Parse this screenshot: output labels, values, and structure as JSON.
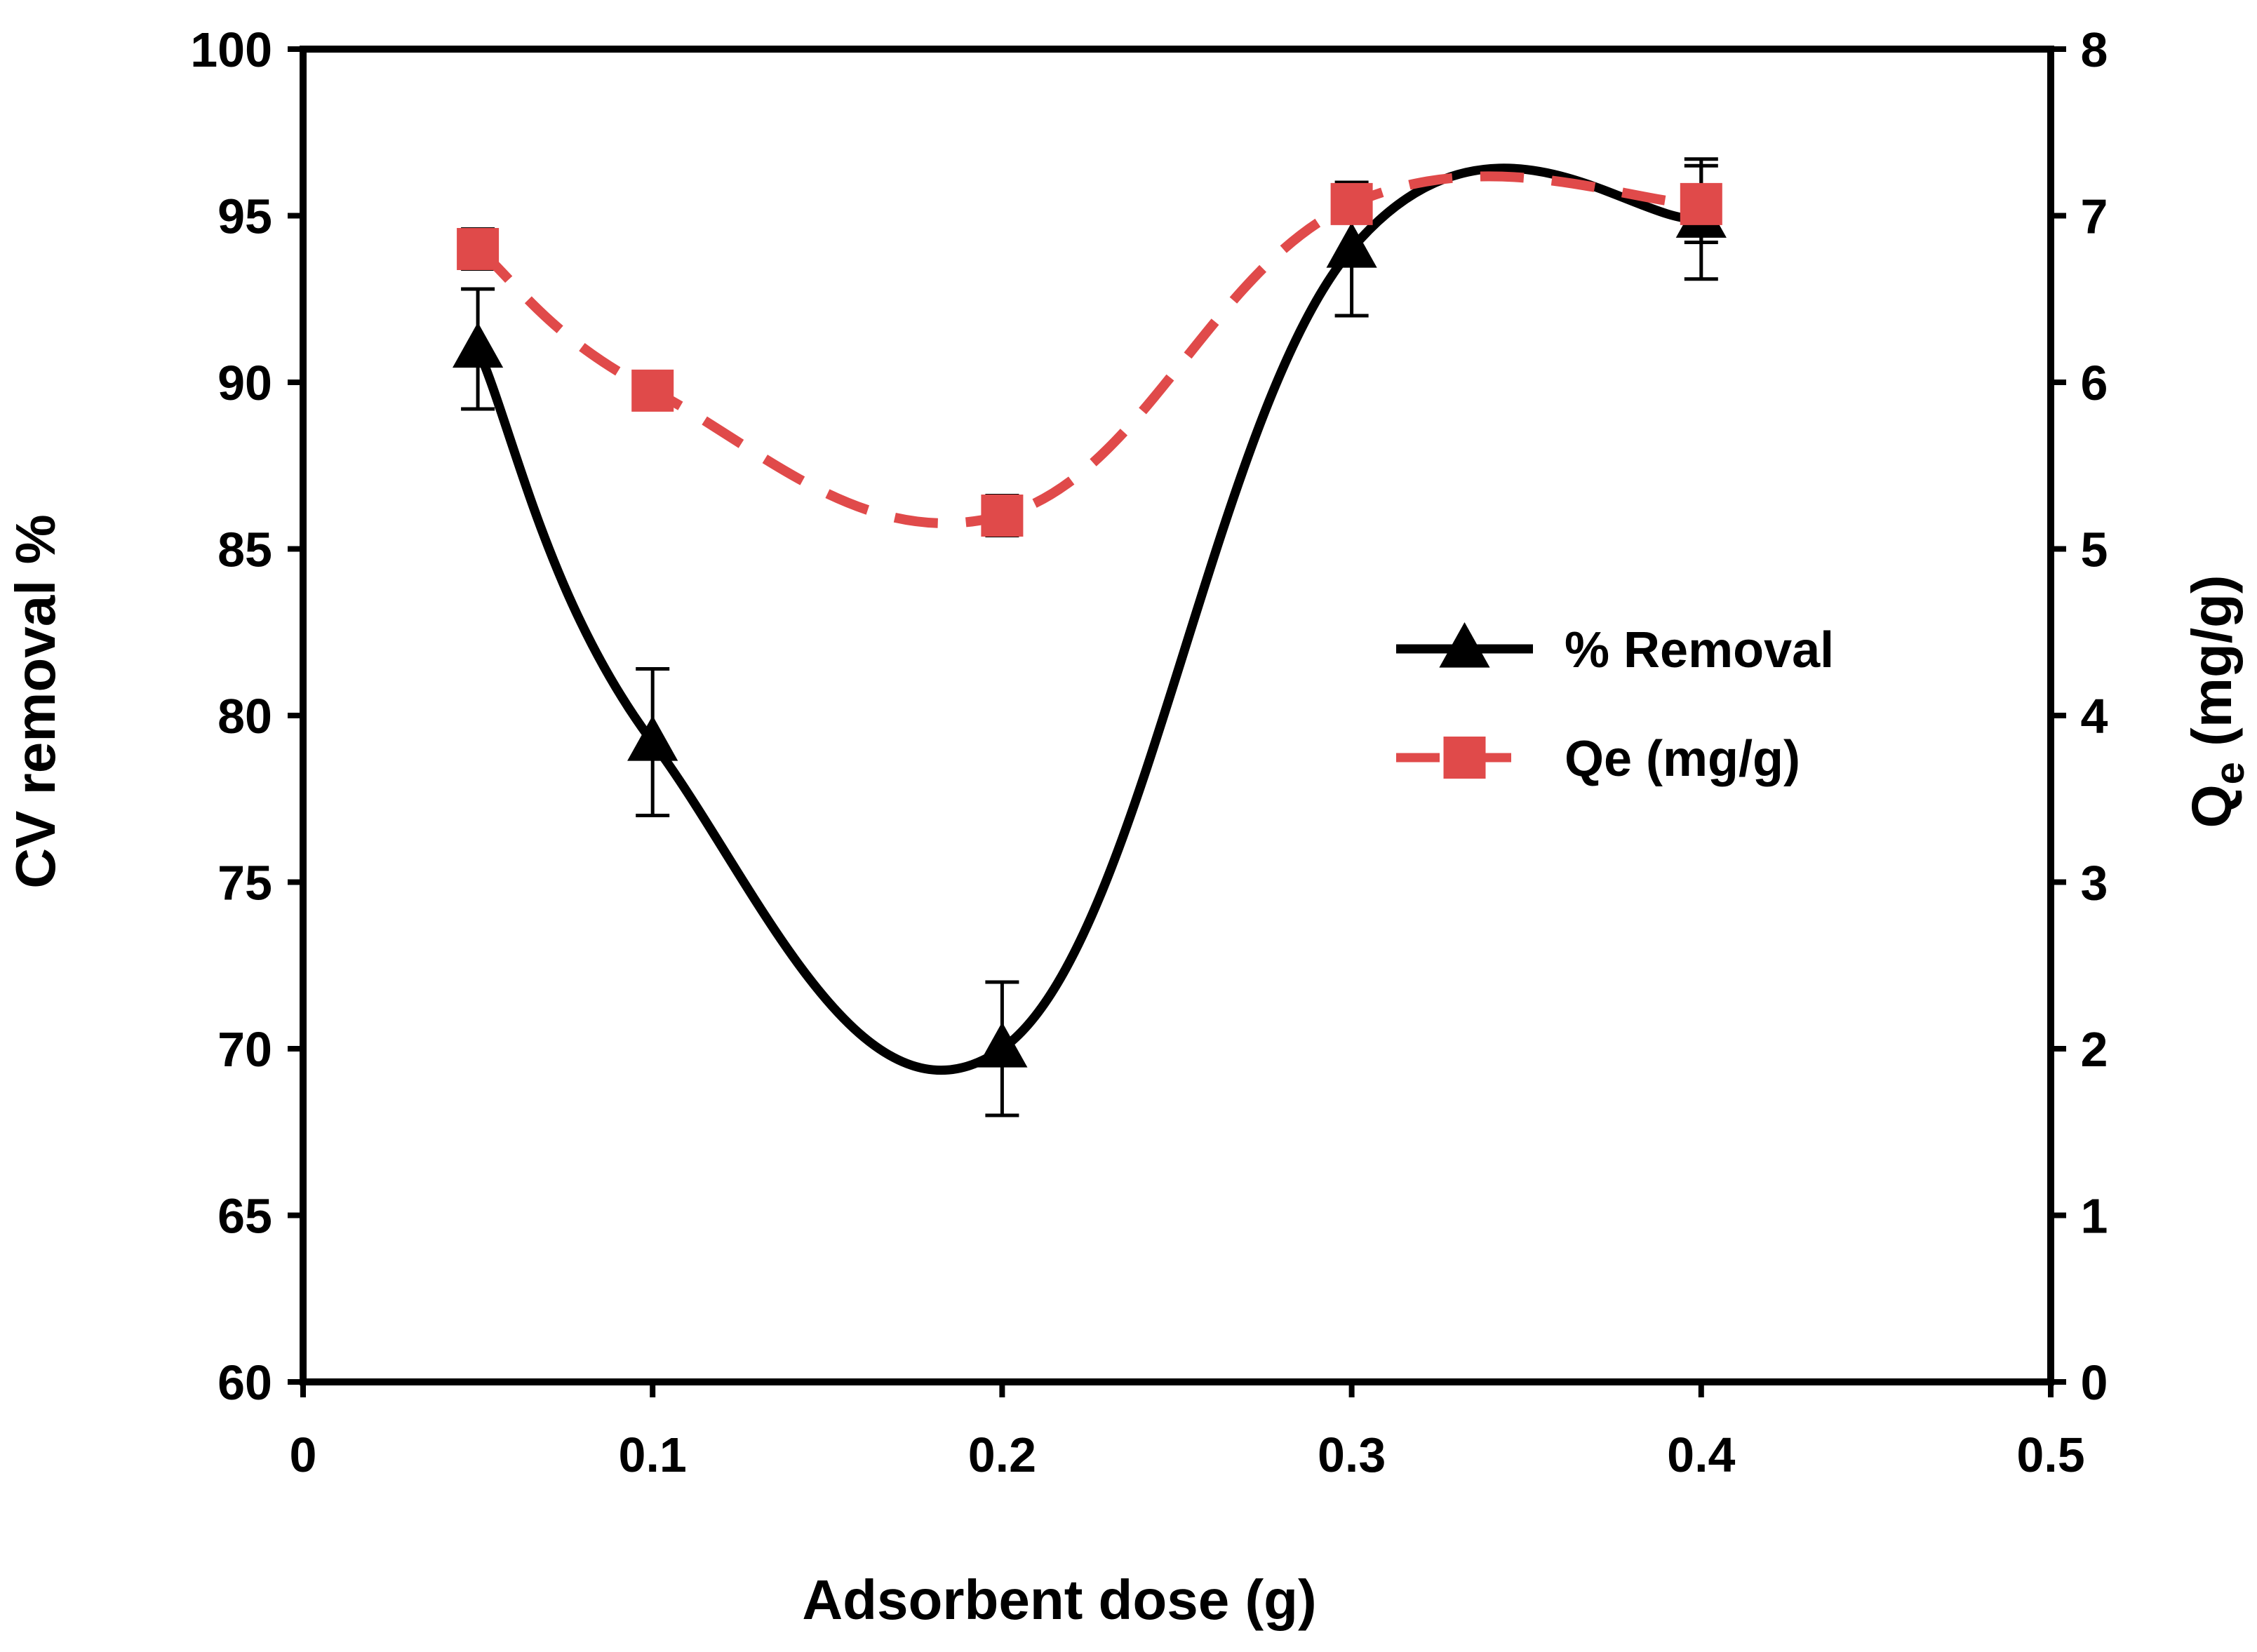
{
  "chart_data": {
    "type": "line",
    "title": "",
    "xlabel": "Adsorbent dose (g)",
    "ylabel": "CV removal %",
    "y2label_main": "Q",
    "y2label_sub": "e",
    "y2label_rest": " (mg/g)",
    "xlim": [
      0,
      0.5
    ],
    "ylim": [
      60,
      100
    ],
    "y2lim": [
      0,
      8
    ],
    "x_ticks": [
      "0",
      "0.1",
      "0.2",
      "0.3",
      "0.4",
      "0.5"
    ],
    "y_ticks": [
      "60",
      "65",
      "70",
      "75",
      "80",
      "85",
      "90",
      "95",
      "100"
    ],
    "y2_ticks": [
      "0",
      "1",
      "2",
      "3",
      "4",
      "5",
      "6",
      "7",
      "8"
    ],
    "legend_position": "center-right",
    "series": [
      {
        "name": "% Removal",
        "axis": "left",
        "marker": "triangle",
        "line": "solid",
        "color": "#000000",
        "x": [
          0.05,
          0.1,
          0.2,
          0.3,
          0.4
        ],
        "values": [
          91.0,
          79.2,
          70.0,
          94.0,
          94.9
        ],
        "errors": [
          1.8,
          2.2,
          2.0,
          2.0,
          1.8
        ]
      },
      {
        "name": "Qe (mg/g)",
        "axis": "right",
        "marker": "square",
        "line": "dashed",
        "color": "#e04a4a",
        "x": [
          0.05,
          0.1,
          0.2,
          0.3,
          0.4
        ],
        "values": [
          6.8,
          5.95,
          5.2,
          7.07,
          7.07
        ],
        "errors": [
          0.12,
          0.0,
          0.12,
          0.0,
          0.23
        ]
      }
    ]
  }
}
